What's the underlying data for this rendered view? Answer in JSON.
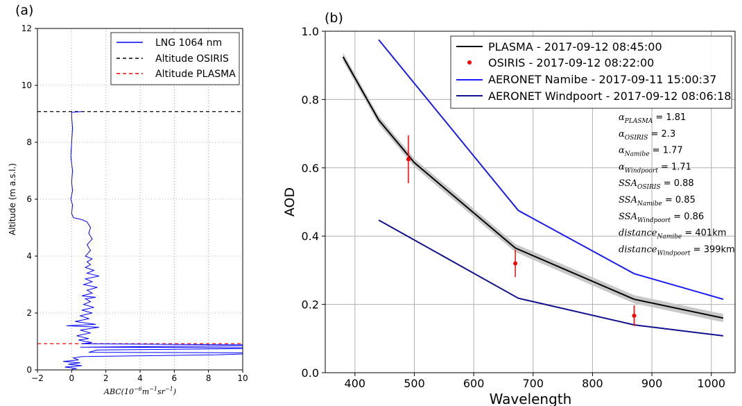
{
  "chart_data": [
    {
      "type": "line",
      "panel_label": "(a)",
      "xlabel_parts": {
        "pre": "ABC(10",
        "e1": "−6",
        "mid": "m",
        "e2": "−1",
        "mid2": "sr",
        "e3": "−1",
        "post": ")"
      },
      "ylabel": "Altitude (m a.s.l.)",
      "xlim": [
        -2,
        10
      ],
      "ylim": [
        0,
        12
      ],
      "xticks": [
        -2,
        0,
        2,
        4,
        6,
        8,
        10
      ],
      "xtick_labels": [
        "−2",
        "0",
        "2",
        "4",
        "6",
        "8",
        "10"
      ],
      "yticks": [
        0,
        2,
        4,
        6,
        8,
        10,
        12
      ],
      "ytick_labels": [
        "0",
        "2",
        "4",
        "6",
        "8",
        "10",
        "12"
      ],
      "grid": true,
      "legend_position": "top-right",
      "legend": [
        {
          "label": "LNG 1064 nm",
          "style": "solid",
          "color": "#0000ff"
        },
        {
          "label": "Altitude OSIRIS",
          "style": "dashed",
          "color": "#000000"
        },
        {
          "label": "Altitude PLASMA",
          "style": "dashed",
          "color": "#ff0000"
        }
      ],
      "series": [
        {
          "name": "LNG 1064 nm",
          "color": "#0000ff",
          "profile": [
            [
              0.0,
              0.02
            ],
            [
              0.3,
              0.05
            ],
            [
              -0.4,
              0.1
            ],
            [
              0.6,
              0.15
            ],
            [
              -0.2,
              0.2
            ],
            [
              0.5,
              0.25
            ],
            [
              -0.5,
              0.3
            ],
            [
              0.4,
              0.35
            ],
            [
              0.1,
              0.42
            ],
            [
              0.6,
              0.47
            ],
            [
              4.5,
              0.5
            ],
            [
              8.5,
              0.53
            ],
            [
              10,
              0.56
            ],
            [
              10,
              0.6
            ],
            [
              1.0,
              0.62
            ],
            [
              1.5,
              0.7
            ],
            [
              10,
              0.75
            ],
            [
              10,
              0.78
            ],
            [
              0.5,
              0.8
            ],
            [
              10,
              0.85
            ],
            [
              10,
              0.88
            ],
            [
              0.6,
              0.92
            ],
            [
              1.2,
              0.96
            ],
            [
              0.8,
              1.0
            ],
            [
              0.4,
              1.05
            ],
            [
              1.0,
              1.1
            ],
            [
              0.3,
              1.2
            ],
            [
              1.1,
              1.3
            ],
            [
              0.5,
              1.4
            ],
            [
              1.6,
              1.5
            ],
            [
              -0.3,
              1.55
            ],
            [
              1.4,
              1.6
            ],
            [
              0.2,
              1.7
            ],
            [
              1.0,
              1.8
            ],
            [
              0.5,
              1.9
            ],
            [
              1.2,
              2.0
            ],
            [
              0.6,
              2.1
            ],
            [
              1.3,
              2.2
            ],
            [
              0.7,
              2.3
            ],
            [
              1.1,
              2.4
            ],
            [
              0.8,
              2.5
            ],
            [
              1.4,
              2.55
            ],
            [
              0.6,
              2.6
            ],
            [
              1.2,
              2.7
            ],
            [
              0.9,
              2.8
            ],
            [
              1.5,
              2.9
            ],
            [
              0.7,
              3.0
            ],
            [
              1.2,
              3.1
            ],
            [
              0.8,
              3.2
            ],
            [
              1.6,
              3.3
            ],
            [
              0.9,
              3.4
            ],
            [
              1.3,
              3.5
            ],
            [
              0.8,
              3.6
            ],
            [
              1.1,
              3.7
            ],
            [
              0.9,
              3.8
            ],
            [
              1.2,
              3.9
            ],
            [
              0.8,
              4.0
            ],
            [
              1.1,
              4.2
            ],
            [
              0.9,
              4.4
            ],
            [
              1.2,
              4.6
            ],
            [
              1.0,
              4.8
            ],
            [
              1.1,
              5.0
            ],
            [
              0.9,
              5.2
            ],
            [
              0.6,
              5.28
            ],
            [
              0.1,
              5.35
            ],
            [
              0.0,
              5.5
            ],
            [
              0.05,
              5.8
            ],
            [
              -0.05,
              6.0
            ],
            [
              0.05,
              6.3
            ],
            [
              0.0,
              6.6
            ],
            [
              0.05,
              7.0
            ],
            [
              -0.05,
              7.5
            ],
            [
              0.0,
              8.0
            ],
            [
              0.05,
              8.5
            ],
            [
              0.0,
              8.9
            ],
            [
              0.0,
              9.05
            ],
            [
              0.6,
              9.08
            ]
          ]
        }
      ],
      "hlines": [
        {
          "name": "Altitude OSIRIS",
          "y": 9.08,
          "color": "#000000"
        },
        {
          "name": "Altitude PLASMA",
          "y": 0.92,
          "color": "#ff0000"
        }
      ]
    },
    {
      "type": "line",
      "panel_label": "(b)",
      "xlabel": "Wavelength",
      "ylabel": "AOD",
      "xlim": [
        350,
        1040
      ],
      "ylim": [
        0.0,
        1.0
      ],
      "xticks": [
        400,
        500,
        600,
        700,
        800,
        900,
        1000
      ],
      "xtick_labels": [
        "400",
        "500",
        "600",
        "700",
        "800",
        "900",
        "1000"
      ],
      "yticks": [
        0.0,
        0.2,
        0.4,
        0.6,
        0.8,
        1.0
      ],
      "ytick_labels": [
        "0.0",
        "0.2",
        "0.4",
        "0.6",
        "0.8",
        "1.0"
      ],
      "grid": true,
      "legend_position": "top-right",
      "legend": [
        {
          "label": "PLASMA - 2017-09-12 08:45:00",
          "style": "line",
          "color": "#000000"
        },
        {
          "label": "OSIRIS - 2017-09-12 08:22:00",
          "style": "point",
          "color": "#ff0000"
        },
        {
          "label": "AERONET Namibe - 2017-09-11 15:00:37",
          "style": "line",
          "color": "#1a1aff"
        },
        {
          "label": "AERONET Windpoort - 2017-09-12 08:06:18",
          "style": "line",
          "color": "#101090"
        }
      ],
      "series": [
        {
          "name": "PLASMA - 2017-09-12 08:45:00",
          "color": "#000000",
          "x": [
            380,
            440,
            500,
            670,
            870,
            1020
          ],
          "y": [
            0.925,
            0.74,
            0.615,
            0.365,
            0.215,
            0.16
          ],
          "band_width": 0.012
        },
        {
          "name": "AERONET Namibe - 2017-09-11 15:00:37",
          "color": "#1a1aff",
          "x": [
            440,
            675,
            870,
            1020
          ],
          "y": [
            0.975,
            0.475,
            0.29,
            0.215
          ]
        },
        {
          "name": "AERONET Windpoort - 2017-09-12 08:06:18",
          "color": "#101090",
          "x": [
            440,
            675,
            870,
            1020
          ],
          "y": [
            0.447,
            0.218,
            0.14,
            0.108
          ]
        }
      ],
      "points": {
        "name": "OSIRIS - 2017-09-12 08:22:00",
        "color": "#ff0000",
        "x": [
          490,
          670,
          870
        ],
        "y": [
          0.625,
          0.32,
          0.167
        ],
        "err": [
          0.07,
          0.04,
          0.03
        ]
      },
      "annotations": [
        {
          "sym": "α",
          "sub": "PLASMA",
          "val": "= 1.81"
        },
        {
          "sym": "α",
          "sub": "OSIRIS",
          "val": "= 2.3"
        },
        {
          "sym": "α",
          "sub": "Namibe",
          "val": "= 1.77"
        },
        {
          "sym": "α",
          "sub": "Windpoort",
          "val": "= 1.71"
        },
        {
          "sym": "SSA",
          "sub": "OSIRIS",
          "val": "= 0.88"
        },
        {
          "sym": "SSA",
          "sub": "Namibe",
          "val": "= 0.85"
        },
        {
          "sym": "SSA",
          "sub": "Windpoort",
          "val": "= 0.86"
        },
        {
          "sym": "distance",
          "sub": "Namibe",
          "val": "= 401km"
        },
        {
          "sym": "distance",
          "sub": "Windpoort",
          "val": "= 399km"
        }
      ]
    }
  ]
}
